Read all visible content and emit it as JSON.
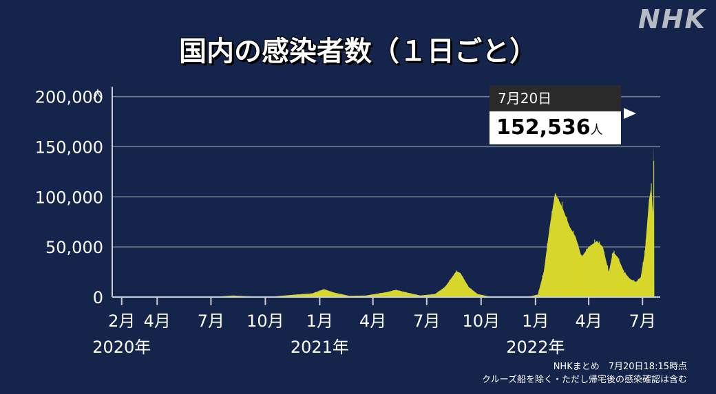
{
  "brand": {
    "logo": "NHK"
  },
  "footnote": {
    "line1": "NHKまとめ　7月20日18:15時点",
    "line2": "クルーズ船を除く・ただし帰宅後の感染確認は含む"
  },
  "callout": {
    "date": "7月20日",
    "value": "152,536",
    "unit": "人"
  },
  "colors": {
    "background": "#14244a",
    "series": "#d7d62a",
    "grid": "#7a8296",
    "axis": "#c9ccd4",
    "text": "#ffffff"
  },
  "chart_data": {
    "type": "area",
    "title": "国内の感染者数（１日ごと）",
    "y_unit": "人",
    "ylim": [
      0,
      210000
    ],
    "y_ticks": [
      {
        "value": 0,
        "label": "0"
      },
      {
        "value": 50000,
        "label": "50,000"
      },
      {
        "value": 100000,
        "label": "100,000"
      },
      {
        "value": 150000,
        "label": "150,000"
      },
      {
        "value": 200000,
        "label": "200,000"
      }
    ],
    "xlim": [
      "2020-01-16",
      "2022-07-31"
    ],
    "x_ticks": [
      {
        "date": "2020-02-01",
        "label": "2月"
      },
      {
        "date": "2020-04-01",
        "label": "4月"
      },
      {
        "date": "2020-07-01",
        "label": "7月"
      },
      {
        "date": "2020-10-01",
        "label": "10月"
      },
      {
        "date": "2021-01-01",
        "label": "1月"
      },
      {
        "date": "2021-04-01",
        "label": "4月"
      },
      {
        "date": "2021-07-01",
        "label": "7月"
      },
      {
        "date": "2021-10-01",
        "label": "10月"
      },
      {
        "date": "2022-01-01",
        "label": "1月"
      },
      {
        "date": "2022-04-01",
        "label": "4月"
      },
      {
        "date": "2022-07-01",
        "label": "7月"
      }
    ],
    "year_labels": [
      {
        "date": "2020-02-01",
        "label": "2020年"
      },
      {
        "date": "2021-01-01",
        "label": "2021年"
      },
      {
        "date": "2022-01-01",
        "label": "2022年"
      }
    ],
    "grid": true,
    "series": [
      {
        "points": [
          [
            "2020-01-16",
            0
          ],
          [
            "2020-03-01",
            100
          ],
          [
            "2020-04-10",
            650
          ],
          [
            "2020-05-15",
            50
          ],
          [
            "2020-06-15",
            60
          ],
          [
            "2020-07-15",
            600
          ],
          [
            "2020-08-07",
            1600
          ],
          [
            "2020-09-10",
            500
          ],
          [
            "2020-10-15",
            600
          ],
          [
            "2020-11-20",
            2400
          ],
          [
            "2020-12-20",
            3700
          ],
          [
            "2021-01-08",
            7900
          ],
          [
            "2021-01-25",
            4500
          ],
          [
            "2021-02-20",
            1200
          ],
          [
            "2021-03-20",
            1500
          ],
          [
            "2021-04-25",
            5000
          ],
          [
            "2021-05-10",
            7200
          ],
          [
            "2021-05-25",
            5000
          ],
          [
            "2021-06-20",
            1600
          ],
          [
            "2021-07-15",
            3000
          ],
          [
            "2021-08-01",
            10000
          ],
          [
            "2021-08-20",
            25800
          ],
          [
            "2021-08-27",
            24000
          ],
          [
            "2021-09-10",
            10000
          ],
          [
            "2021-09-25",
            3000
          ],
          [
            "2021-10-15",
            600
          ],
          [
            "2021-11-15",
            150
          ],
          [
            "2021-12-20",
            300
          ],
          [
            "2022-01-05",
            2600
          ],
          [
            "2022-01-15",
            25000
          ],
          [
            "2022-01-25",
            70000
          ],
          [
            "2022-02-03",
            104000
          ],
          [
            "2022-02-15",
            90000
          ],
          [
            "2022-02-28",
            70000
          ],
          [
            "2022-03-10",
            60000
          ],
          [
            "2022-03-20",
            40000
          ],
          [
            "2022-04-01",
            50000
          ],
          [
            "2022-04-15",
            56000
          ],
          [
            "2022-04-25",
            50000
          ],
          [
            "2022-05-05",
            25000
          ],
          [
            "2022-05-12",
            45000
          ],
          [
            "2022-05-20",
            40000
          ],
          [
            "2022-05-31",
            25000
          ],
          [
            "2022-06-10",
            18000
          ],
          [
            "2022-06-20",
            15000
          ],
          [
            "2022-06-28",
            20000
          ],
          [
            "2022-07-05",
            45000
          ],
          [
            "2022-07-12",
            97000
          ],
          [
            "2022-07-16",
            110000
          ],
          [
            "2022-07-19",
            80000
          ],
          [
            "2022-07-20",
            152536
          ],
          [
            "2022-07-21",
            0
          ]
        ]
      }
    ]
  }
}
